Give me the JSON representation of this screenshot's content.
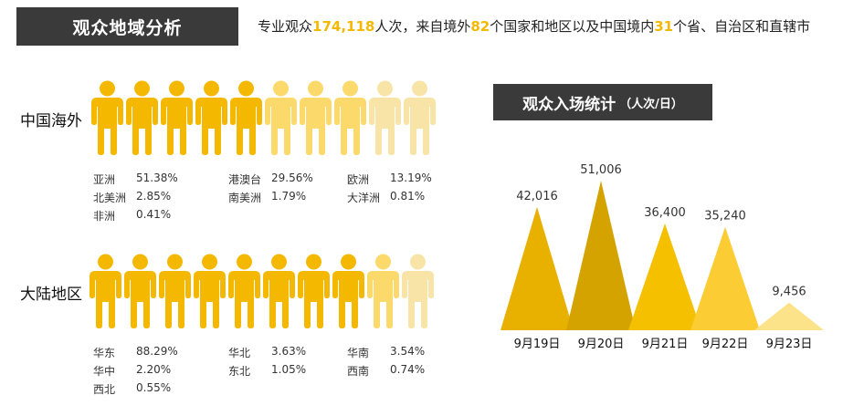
{
  "header": {
    "title": "观众地域分析",
    "summary": [
      {
        "text": "专业观众",
        "hl": false
      },
      {
        "text": "174,118",
        "hl": true
      },
      {
        "text": "人次，来自境外",
        "hl": false
      },
      {
        "text": "82",
        "hl": true
      },
      {
        "text": "个国家和地区以及中国境内",
        "hl": false
      },
      {
        "text": "31",
        "hl": true
      },
      {
        "text": "个省、自治区和直辖市",
        "hl": false
      }
    ]
  },
  "colors": {
    "person_bright": "#f5b800",
    "person_light": "#fbd96b",
    "person_pale": "#f7e4a6",
    "highlight": "#f5b800",
    "dark_box": "#3a3a3a"
  },
  "overseas": {
    "label": "中国海外",
    "icon_shades": [
      "bright",
      "bright",
      "bright",
      "bright",
      "bright",
      "light",
      "light",
      "light",
      "pale",
      "pale"
    ],
    "stats": [
      {
        "name": "亚洲",
        "pct": "51.38%"
      },
      {
        "name": "北美洲",
        "pct": "2.85%"
      },
      {
        "name": "非洲",
        "pct": "0.41%"
      },
      {
        "name": "港澳台",
        "pct": "29.56%"
      },
      {
        "name": "南美洲",
        "pct": "1.79%"
      },
      {
        "name": "欧洲",
        "pct": "13.19%"
      },
      {
        "name": "大洋洲",
        "pct": "0.81%"
      }
    ]
  },
  "mainland": {
    "label": "大陆地区",
    "icon_shades": [
      "bright",
      "bright",
      "bright",
      "bright",
      "bright",
      "bright",
      "bright",
      "bright",
      "light",
      "pale"
    ],
    "stats": [
      {
        "name": "华东",
        "pct": "88.29%"
      },
      {
        "name": "华中",
        "pct": "2.20%"
      },
      {
        "name": "西北",
        "pct": "0.55%"
      },
      {
        "name": "华北",
        "pct": "3.63%"
      },
      {
        "name": "东北",
        "pct": "1.05%"
      },
      {
        "name": "华南",
        "pct": "3.54%"
      },
      {
        "name": "西南",
        "pct": "0.74%"
      }
    ]
  },
  "chart_data": {
    "type": "area",
    "title": "观众入场统计",
    "unit_label": "（人次/日）",
    "categories": [
      "9月19日",
      "9月20日",
      "9月21日",
      "9月22日",
      "9月23日"
    ],
    "values": [
      42016,
      51006,
      36400,
      35240,
      9456
    ],
    "value_labels": [
      "42,016",
      "51,006",
      "36,400",
      "35,240",
      "9,456"
    ],
    "colors": [
      "#e8b100",
      "#d4a300",
      "#f5c000",
      "#fbcc33",
      "#fce38a"
    ],
    "ylim": [
      0,
      51006
    ]
  }
}
